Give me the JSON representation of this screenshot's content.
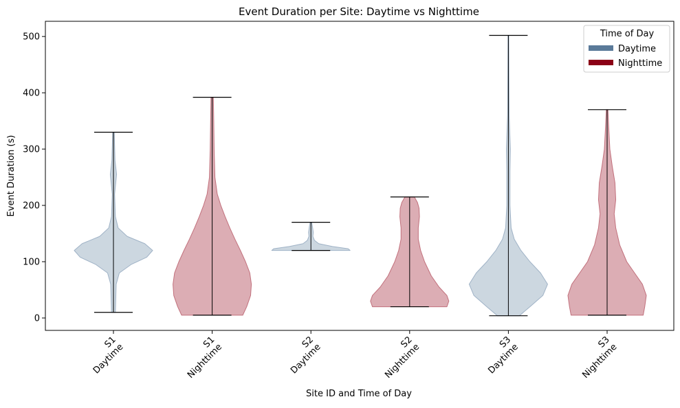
{
  "chart_data": {
    "type": "violin",
    "title": "Event Duration per Site: Daytime vs Nighttime",
    "xlabel": "Site ID and Time of Day",
    "ylabel": "Event Duration (s)",
    "ylim": [
      -22,
      527
    ],
    "yticks": [
      0,
      100,
      200,
      300,
      400,
      500
    ],
    "grid": false,
    "legend": {
      "title": "Time of Day",
      "placement": "top-right",
      "entries": [
        {
          "label": "Daytime",
          "color": "#5a7a99"
        },
        {
          "label": "Nighttime",
          "color": "#8b0016"
        }
      ]
    },
    "categories": [
      {
        "site": "S1",
        "time": "Daytime"
      },
      {
        "site": "S1",
        "time": "Nighttime"
      },
      {
        "site": "S2",
        "time": "Daytime"
      },
      {
        "site": "S2",
        "time": "Nighttime"
      },
      {
        "site": "S3",
        "time": "Daytime"
      },
      {
        "site": "S3",
        "time": "Nighttime"
      }
    ],
    "series": [
      {
        "min": 10,
        "max": 330,
        "fill": "#b9c7d4",
        "edge": "#9fb2c6",
        "density": [
          [
            10,
            0.05
          ],
          [
            60,
            0.07
          ],
          [
            80,
            0.15
          ],
          [
            95,
            0.45
          ],
          [
            108,
            0.85
          ],
          [
            120,
            1.0
          ],
          [
            132,
            0.8
          ],
          [
            145,
            0.35
          ],
          [
            160,
            0.12
          ],
          [
            180,
            0.05
          ],
          [
            220,
            0.03
          ],
          [
            255,
            0.08
          ],
          [
            280,
            0.04
          ],
          [
            330,
            0.02
          ]
        ]
      },
      {
        "min": 5,
        "max": 392,
        "fill": "#cf8d97",
        "edge": "#c1707c",
        "density": [
          [
            5,
            0.78
          ],
          [
            20,
            0.88
          ],
          [
            40,
            0.98
          ],
          [
            60,
            1.0
          ],
          [
            80,
            0.96
          ],
          [
            100,
            0.85
          ],
          [
            120,
            0.72
          ],
          [
            140,
            0.58
          ],
          [
            160,
            0.45
          ],
          [
            180,
            0.33
          ],
          [
            200,
            0.22
          ],
          [
            220,
            0.13
          ],
          [
            250,
            0.07
          ],
          [
            300,
            0.05
          ],
          [
            350,
            0.04
          ],
          [
            392,
            0.03
          ]
        ]
      },
      {
        "min": 120,
        "max": 170,
        "fill": "#b9c7d4",
        "edge": "#9fb2c6",
        "density": [
          [
            120,
            1.0
          ],
          [
            123,
            0.95
          ],
          [
            127,
            0.55
          ],
          [
            132,
            0.2
          ],
          [
            138,
            0.09
          ],
          [
            145,
            0.05
          ],
          [
            152,
            0.06
          ],
          [
            157,
            0.05
          ],
          [
            162,
            0.04
          ],
          [
            170,
            0.02
          ]
        ]
      },
      {
        "min": 20,
        "max": 215,
        "fill": "#cf8d97",
        "edge": "#c1707c",
        "density": [
          [
            20,
            0.95
          ],
          [
            30,
            1.0
          ],
          [
            40,
            0.95
          ],
          [
            55,
            0.75
          ],
          [
            75,
            0.55
          ],
          [
            100,
            0.38
          ],
          [
            120,
            0.28
          ],
          [
            140,
            0.22
          ],
          [
            160,
            0.22
          ],
          [
            180,
            0.25
          ],
          [
            195,
            0.24
          ],
          [
            205,
            0.2
          ],
          [
            215,
            0.12
          ]
        ]
      },
      {
        "min": 4,
        "max": 502,
        "fill": "#b9c7d4",
        "edge": "#9fb2c6",
        "density": [
          [
            4,
            0.28
          ],
          [
            20,
            0.55
          ],
          [
            40,
            0.88
          ],
          [
            60,
            1.0
          ],
          [
            80,
            0.82
          ],
          [
            100,
            0.55
          ],
          [
            120,
            0.32
          ],
          [
            140,
            0.15
          ],
          [
            160,
            0.07
          ],
          [
            200,
            0.04
          ],
          [
            260,
            0.04
          ],
          [
            300,
            0.05
          ],
          [
            360,
            0.02
          ],
          [
            420,
            0.015
          ],
          [
            502,
            0.01
          ]
        ]
      },
      {
        "min": 5,
        "max": 370,
        "fill": "#cf8d97",
        "edge": "#c1707c",
        "density": [
          [
            5,
            0.92
          ],
          [
            20,
            0.96
          ],
          [
            40,
            1.0
          ],
          [
            60,
            0.9
          ],
          [
            80,
            0.7
          ],
          [
            100,
            0.5
          ],
          [
            130,
            0.32
          ],
          [
            160,
            0.22
          ],
          [
            185,
            0.18
          ],
          [
            210,
            0.22
          ],
          [
            240,
            0.2
          ],
          [
            270,
            0.13
          ],
          [
            300,
            0.07
          ],
          [
            340,
            0.04
          ],
          [
            370,
            0.02
          ]
        ]
      }
    ]
  }
}
